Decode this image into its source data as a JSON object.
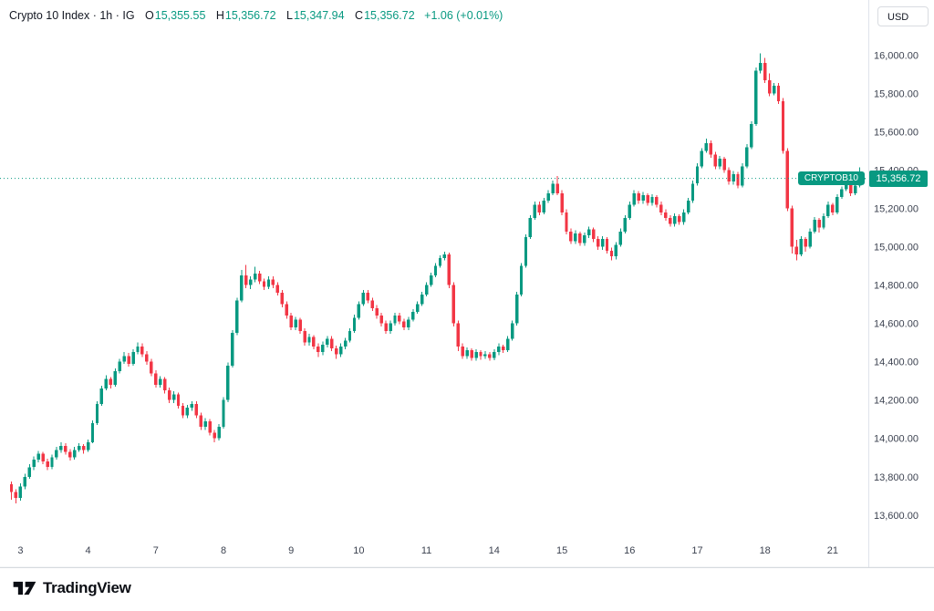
{
  "header": {
    "legend": {
      "title": "Crypto 10 Index · 1h · IG",
      "o_label": "O",
      "o_value": "15,355.55",
      "h_label": "H",
      "h_value": "15,356.72",
      "l_label": "L",
      "l_value": "15,347.94",
      "c_label": "C",
      "c_value": "15,356.72",
      "change": "+1.06 (+0.01%)"
    },
    "currency_button": "USD"
  },
  "badge": {
    "symbol": "CRYPTOB10",
    "price": "15,356.72"
  },
  "footer": {
    "brand": "TradingView"
  },
  "colors": {
    "up": "#089981",
    "down": "#f23645",
    "axis_text": "#3c4250",
    "border": "#e0e3eb"
  },
  "chart_data": {
    "type": "candlestick",
    "title": "Crypto 10 Index",
    "interval": "1h",
    "exchange": "IG",
    "last": 15356.72,
    "ohlc_current": {
      "open": 15355.55,
      "high": 15356.72,
      "low": 15347.94,
      "close": 15356.72,
      "change": 1.06,
      "change_pct": 0.01
    },
    "price_domain": [
      13480,
      16145
    ],
    "price_ticks": [
      {
        "v": 16000,
        "label": "16,000.00"
      },
      {
        "v": 15800,
        "label": "15,800.00"
      },
      {
        "v": 15600,
        "label": "15,600.00"
      },
      {
        "v": 15400,
        "label": "15,400.00"
      },
      {
        "v": 15200,
        "label": "15,200.00"
      },
      {
        "v": 15000,
        "label": "15,000.00"
      },
      {
        "v": 14800,
        "label": "14,800.00"
      },
      {
        "v": 14600,
        "label": "14,600.00"
      },
      {
        "v": 14400,
        "label": "14,400.00"
      },
      {
        "v": 14200,
        "label": "14,200.00"
      },
      {
        "v": 14000,
        "label": "14,000.00"
      },
      {
        "v": 13800,
        "label": "13,800.00"
      },
      {
        "v": 13600,
        "label": "13,600.00"
      }
    ],
    "time_ticks": [
      {
        "i": 2,
        "label": "3"
      },
      {
        "i": 17,
        "label": "4"
      },
      {
        "i": 32,
        "label": "7"
      },
      {
        "i": 47,
        "label": "8"
      },
      {
        "i": 62,
        "label": "9"
      },
      {
        "i": 77,
        "label": "10"
      },
      {
        "i": 92,
        "label": "11"
      },
      {
        "i": 107,
        "label": "14"
      },
      {
        "i": 122,
        "label": "15"
      },
      {
        "i": 137,
        "label": "16"
      },
      {
        "i": 152,
        "label": "17"
      },
      {
        "i": 167,
        "label": "18"
      },
      {
        "i": 182,
        "label": "21"
      }
    ],
    "candles": [
      [
        13760,
        13775,
        13680,
        13720
      ],
      [
        13720,
        13735,
        13660,
        13690
      ],
      [
        13690,
        13765,
        13675,
        13750
      ],
      [
        13750,
        13815,
        13735,
        13800
      ],
      [
        13800,
        13865,
        13790,
        13850
      ],
      [
        13850,
        13905,
        13835,
        13890
      ],
      [
        13890,
        13935,
        13875,
        13920
      ],
      [
        13920,
        13930,
        13865,
        13880
      ],
      [
        13880,
        13895,
        13835,
        13850
      ],
      [
        13850,
        13915,
        13840,
        13900
      ],
      [
        13900,
        13955,
        13890,
        13940
      ],
      [
        13940,
        13980,
        13925,
        13960
      ],
      [
        13960,
        13975,
        13915,
        13930
      ],
      [
        13930,
        13945,
        13885,
        13900
      ],
      [
        13900,
        13955,
        13890,
        13940
      ],
      [
        13940,
        13975,
        13930,
        13960
      ],
      [
        13960,
        13970,
        13920,
        13940
      ],
      [
        13940,
        13995,
        13930,
        13980
      ],
      [
        13980,
        14095,
        13975,
        14080
      ],
      [
        14080,
        14195,
        14070,
        14180
      ],
      [
        14180,
        14275,
        14170,
        14260
      ],
      [
        14260,
        14330,
        14250,
        14310
      ],
      [
        14310,
        14320,
        14260,
        14280
      ],
      [
        14280,
        14365,
        14270,
        14350
      ],
      [
        14350,
        14415,
        14340,
        14400
      ],
      [
        14400,
        14450,
        14390,
        14430
      ],
      [
        14430,
        14445,
        14375,
        14390
      ],
      [
        14390,
        14465,
        14380,
        14450
      ],
      [
        14450,
        14500,
        14440,
        14480
      ],
      [
        14480,
        14495,
        14425,
        14440
      ],
      [
        14440,
        14455,
        14385,
        14400
      ],
      [
        14400,
        14415,
        14325,
        14340
      ],
      [
        14340,
        14355,
        14265,
        14280
      ],
      [
        14280,
        14325,
        14265,
        14310
      ],
      [
        14310,
        14320,
        14235,
        14250
      ],
      [
        14250,
        14265,
        14185,
        14200
      ],
      [
        14200,
        14245,
        14185,
        14230
      ],
      [
        14230,
        14240,
        14155,
        14170
      ],
      [
        14170,
        14185,
        14105,
        14120
      ],
      [
        14120,
        14175,
        14105,
        14160
      ],
      [
        14160,
        14195,
        14145,
        14180
      ],
      [
        14180,
        14195,
        14105,
        14120
      ],
      [
        14120,
        14135,
        14045,
        14060
      ],
      [
        14060,
        14105,
        14045,
        14090
      ],
      [
        14090,
        14100,
        14015,
        14030
      ],
      [
        14030,
        14045,
        13980,
        14000
      ],
      [
        14000,
        14075,
        13990,
        14060
      ],
      [
        14060,
        14215,
        14050,
        14200
      ],
      [
        14200,
        14395,
        14190,
        14380
      ],
      [
        14380,
        14565,
        14370,
        14550
      ],
      [
        14550,
        14735,
        14540,
        14720
      ],
      [
        14720,
        14880,
        14710,
        14850
      ],
      [
        14850,
        14905,
        14785,
        14800
      ],
      [
        14800,
        14845,
        14780,
        14830
      ],
      [
        14830,
        14895,
        14815,
        14860
      ],
      [
        14860,
        14875,
        14805,
        14820
      ],
      [
        14820,
        14835,
        14775,
        14790
      ],
      [
        14790,
        14845,
        14780,
        14830
      ],
      [
        14830,
        14845,
        14785,
        14800
      ],
      [
        14800,
        14815,
        14745,
        14760
      ],
      [
        14760,
        14775,
        14685,
        14700
      ],
      [
        14700,
        14715,
        14625,
        14640
      ],
      [
        14640,
        14655,
        14565,
        14580
      ],
      [
        14580,
        14635,
        14565,
        14620
      ],
      [
        14620,
        14630,
        14545,
        14560
      ],
      [
        14560,
        14575,
        14485,
        14500
      ],
      [
        14500,
        14545,
        14485,
        14530
      ],
      [
        14530,
        14540,
        14465,
        14480
      ],
      [
        14480,
        14495,
        14425,
        14450
      ],
      [
        14450,
        14505,
        14435,
        14490
      ],
      [
        14490,
        14535,
        14475,
        14520
      ],
      [
        14520,
        14535,
        14455,
        14470
      ],
      [
        14470,
        14485,
        14415,
        14440
      ],
      [
        14440,
        14495,
        14425,
        14480
      ],
      [
        14480,
        14525,
        14465,
        14510
      ],
      [
        14510,
        14575,
        14500,
        14560
      ],
      [
        14560,
        14645,
        14550,
        14630
      ],
      [
        14630,
        14715,
        14620,
        14700
      ],
      [
        14700,
        14775,
        14690,
        14760
      ],
      [
        14760,
        14775,
        14705,
        14720
      ],
      [
        14720,
        14735,
        14665,
        14680
      ],
      [
        14680,
        14695,
        14625,
        14640
      ],
      [
        14640,
        14655,
        14585,
        14600
      ],
      [
        14600,
        14615,
        14545,
        14560
      ],
      [
        14560,
        14615,
        14545,
        14600
      ],
      [
        14600,
        14655,
        14590,
        14640
      ],
      [
        14640,
        14655,
        14595,
        14610
      ],
      [
        14610,
        14625,
        14565,
        14580
      ],
      [
        14580,
        14635,
        14565,
        14620
      ],
      [
        14620,
        14675,
        14610,
        14660
      ],
      [
        14660,
        14715,
        14650,
        14700
      ],
      [
        14700,
        14765,
        14690,
        14750
      ],
      [
        14750,
        14815,
        14740,
        14800
      ],
      [
        14800,
        14865,
        14790,
        14850
      ],
      [
        14850,
        14915,
        14840,
        14900
      ],
      [
        14900,
        14955,
        14890,
        14940
      ],
      [
        14940,
        14975,
        14930,
        14960
      ],
      [
        14960,
        14970,
        14785,
        14800
      ],
      [
        14800,
        14815,
        14585,
        14600
      ],
      [
        14600,
        14615,
        14455,
        14480
      ],
      [
        14480,
        14495,
        14415,
        14430
      ],
      [
        14430,
        14475,
        14415,
        14460
      ],
      [
        14460,
        14470,
        14405,
        14420
      ],
      [
        14420,
        14465,
        14405,
        14450
      ],
      [
        14450,
        14460,
        14410,
        14430
      ],
      [
        14430,
        14455,
        14415,
        14440
      ],
      [
        14440,
        14450,
        14405,
        14420
      ],
      [
        14420,
        14465,
        14408,
        14450
      ],
      [
        14450,
        14495,
        14435,
        14480
      ],
      [
        14480,
        14490,
        14445,
        14460
      ],
      [
        14460,
        14535,
        14450,
        14520
      ],
      [
        14520,
        14615,
        14510,
        14600
      ],
      [
        14600,
        14765,
        14590,
        14750
      ],
      [
        14750,
        14915,
        14740,
        14900
      ],
      [
        14900,
        15065,
        14890,
        15050
      ],
      [
        15050,
        15165,
        15040,
        15150
      ],
      [
        15150,
        15235,
        15140,
        15220
      ],
      [
        15220,
        15235,
        15165,
        15180
      ],
      [
        15180,
        15255,
        15170,
        15240
      ],
      [
        15240,
        15295,
        15230,
        15280
      ],
      [
        15280,
        15345,
        15270,
        15330
      ],
      [
        15330,
        15370,
        15270,
        15280
      ],
      [
        15280,
        15295,
        15165,
        15180
      ],
      [
        15180,
        15195,
        15065,
        15080
      ],
      [
        15080,
        15095,
        15015,
        15030
      ],
      [
        15030,
        15085,
        15015,
        15070
      ],
      [
        15070,
        15080,
        15005,
        15020
      ],
      [
        15020,
        15075,
        15005,
        15060
      ],
      [
        15060,
        15105,
        15045,
        15090
      ],
      [
        15090,
        15100,
        15025,
        15040
      ],
      [
        15040,
        15055,
        14985,
        15000
      ],
      [
        15000,
        15055,
        14985,
        15040
      ],
      [
        15040,
        15050,
        14965,
        14980
      ],
      [
        14980,
        14995,
        14930,
        14950
      ],
      [
        14950,
        15025,
        14935,
        15010
      ],
      [
        15010,
        15095,
        15000,
        15080
      ],
      [
        15080,
        15165,
        15070,
        15150
      ],
      [
        15150,
        15235,
        15140,
        15220
      ],
      [
        15220,
        15295,
        15210,
        15280
      ],
      [
        15280,
        15290,
        15225,
        15240
      ],
      [
        15240,
        15285,
        15225,
        15270
      ],
      [
        15270,
        15280,
        15215,
        15230
      ],
      [
        15230,
        15275,
        15215,
        15260
      ],
      [
        15260,
        15270,
        15205,
        15220
      ],
      [
        15220,
        15235,
        15165,
        15180
      ],
      [
        15180,
        15195,
        15135,
        15150
      ],
      [
        15150,
        15165,
        15105,
        15120
      ],
      [
        15120,
        15175,
        15105,
        15160
      ],
      [
        15160,
        15170,
        15115,
        15130
      ],
      [
        15130,
        15195,
        15115,
        15180
      ],
      [
        15180,
        15255,
        15170,
        15240
      ],
      [
        15240,
        15345,
        15230,
        15330
      ],
      [
        15330,
        15435,
        15320,
        15420
      ],
      [
        15420,
        15515,
        15410,
        15500
      ],
      [
        15500,
        15565,
        15490,
        15540
      ],
      [
        15540,
        15555,
        15465,
        15480
      ],
      [
        15480,
        15495,
        15405,
        15420
      ],
      [
        15420,
        15475,
        15405,
        15460
      ],
      [
        15460,
        15470,
        15385,
        15400
      ],
      [
        15400,
        15415,
        15325,
        15340
      ],
      [
        15340,
        15395,
        15325,
        15380
      ],
      [
        15380,
        15390,
        15305,
        15320
      ],
      [
        15320,
        15435,
        15310,
        15420
      ],
      [
        15420,
        15535,
        15410,
        15520
      ],
      [
        15520,
        15655,
        15510,
        15640
      ],
      [
        15640,
        15935,
        15630,
        15920
      ],
      [
        15920,
        16010,
        15905,
        15960
      ],
      [
        15960,
        15985,
        15855,
        15870
      ],
      [
        15870,
        15905,
        15785,
        15800
      ],
      [
        15800,
        15855,
        15790,
        15840
      ],
      [
        15840,
        15855,
        15745,
        15760
      ],
      [
        15760,
        15775,
        15485,
        15500
      ],
      [
        15500,
        15515,
        15185,
        15200
      ],
      [
        15200,
        15215,
        14965,
        15000
      ],
      [
        15000,
        15035,
        14930,
        14960
      ],
      [
        14960,
        15055,
        14950,
        15040
      ],
      [
        15040,
        15050,
        14975,
        15000
      ],
      [
        15000,
        15095,
        14990,
        15080
      ],
      [
        15080,
        15155,
        15070,
        15140
      ],
      [
        15140,
        15150,
        15075,
        15100
      ],
      [
        15100,
        15175,
        15090,
        15160
      ],
      [
        15160,
        15235,
        15150,
        15220
      ],
      [
        15220,
        15230,
        15165,
        15180
      ],
      [
        15180,
        15275,
        15170,
        15260
      ],
      [
        15260,
        15315,
        15250,
        15300
      ],
      [
        15300,
        15355,
        15290,
        15340
      ],
      [
        15340,
        15350,
        15265,
        15280
      ],
      [
        15280,
        15335,
        15270,
        15320
      ],
      [
        15320,
        15415,
        15310,
        15355.55
      ],
      [
        15355.55,
        15356.72,
        15347.94,
        15356.72
      ]
    ]
  }
}
